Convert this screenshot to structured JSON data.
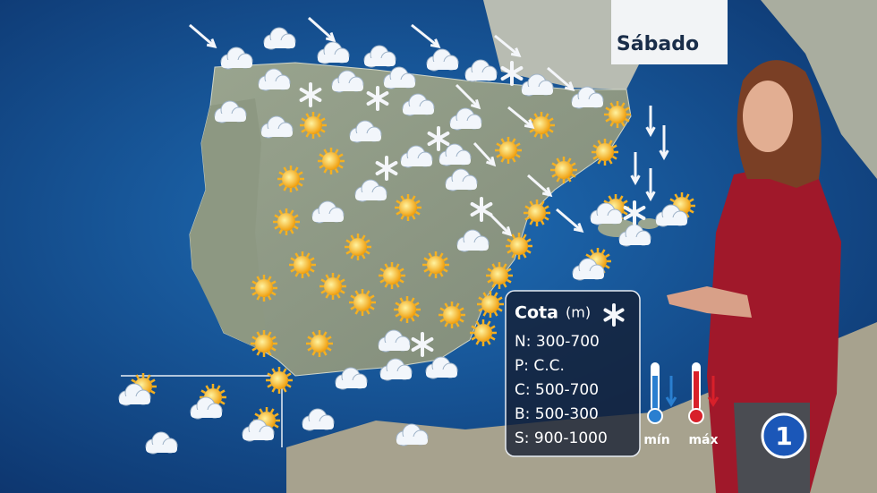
{
  "header": {
    "day": "Sábado"
  },
  "legend": {
    "title": "Cota",
    "unit": "(m)",
    "rows": [
      "N: 300-700",
      "P: C.C.",
      "C: 500-700",
      "B: 500-300",
      "S: 900-1000"
    ],
    "min_label": "mín",
    "max_label": "máx"
  },
  "channel_logo": "1"
}
